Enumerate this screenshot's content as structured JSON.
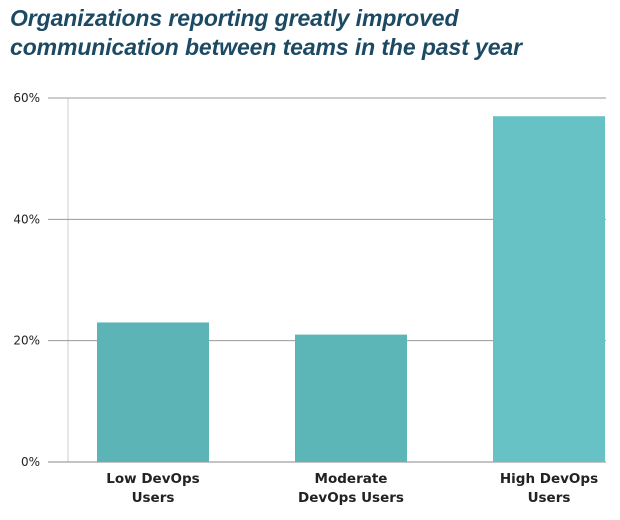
{
  "chart_data": {
    "type": "bar",
    "title": "Organizations reporting greatly improved communication between teams in the past year",
    "categories": [
      "Low DevOps Users",
      "Moderate DevOps Users",
      "High DevOps Users"
    ],
    "category_lines": [
      [
        "Low DevOps",
        "Users"
      ],
      [
        "Moderate",
        "DevOps Users"
      ],
      [
        "High DevOps",
        "Users"
      ]
    ],
    "values": [
      23,
      21,
      57
    ],
    "value_unit": "%",
    "ylim": [
      0,
      60
    ],
    "yticks": [
      0,
      20,
      40,
      60
    ],
    "ytick_labels": [
      "0%",
      "20%",
      "40%",
      "60%"
    ],
    "xlabel": "",
    "ylabel": "",
    "grid": true,
    "colors": {
      "bars": [
        "#5cb4b6",
        "#5cb6b8",
        "#66c2c4"
      ],
      "grid": "#9a9a9a",
      "title": "#1d4a63"
    }
  }
}
